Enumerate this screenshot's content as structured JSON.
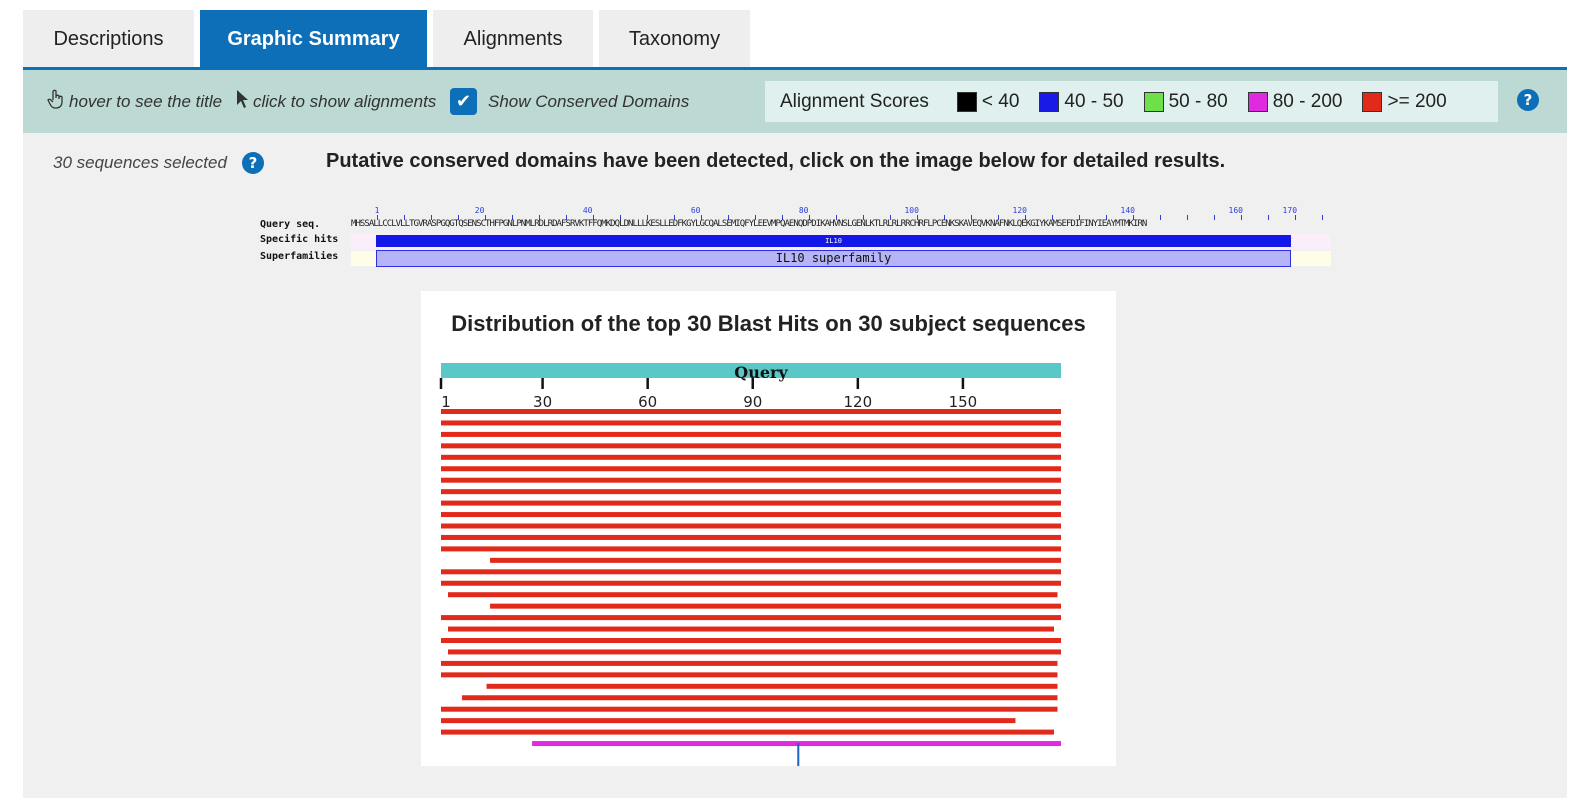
{
  "tabs": [
    {
      "label": "Descriptions",
      "active": false
    },
    {
      "label": "Graphic Summary",
      "active": true
    },
    {
      "label": "Alignments",
      "active": false
    },
    {
      "label": "Taxonomy",
      "active": false
    }
  ],
  "toolbar": {
    "hover_label": "hover to see the title",
    "click_label": "click to show alignments",
    "conserved_label": "Show Conserved Domains",
    "conserved_checked": true,
    "scores_title": "Alignment Scores",
    "legend": [
      {
        "label": "< 40",
        "color": "#000000"
      },
      {
        "label": "40 - 50",
        "color": "#1a1ae6"
      },
      {
        "label": "50 - 80",
        "color": "#6ee04a"
      },
      {
        "label": "80 - 200",
        "color": "#e02ae0"
      },
      {
        "label": ">= 200",
        "color": "#e22a1a"
      }
    ]
  },
  "selection": {
    "text": "30 sequences selected"
  },
  "cdd": {
    "message": "Putative conserved domains have been detected, click on the image below for detailed results.",
    "labels": {
      "query": "Query seq.",
      "specific": "Specific hits",
      "superfamilies": "Superfamilies"
    },
    "ruler": [
      "1",
      "20",
      "40",
      "60",
      "80",
      "100",
      "120",
      "140",
      "160",
      "170"
    ],
    "sequence": "MHSSALLCCLVLLTGVRASPGQGTQSENSCTHFPGNLPNMLRDLRDAFSRVKTFFQMKDQLDNLLLKESLLEDFKGYLGCQALSEMIQFYLEEVMPQAENQDPDIKAHVNSLGENLKTLRLRLRRCHRFLPCENKSKAVEQVKNAFNKLQEKGIYKAMSEFDIFINYIEAYMTMKIRN",
    "specific_hit": "IL10",
    "superfamily": "IL10 superfamily"
  },
  "distribution": {
    "title": "Distribution of the top 30 Blast Hits on 30 subject sequences",
    "query_label": "Query",
    "query_length": 178,
    "ticks": [
      1,
      30,
      60,
      90,
      120,
      150
    ],
    "hits": [
      {
        "start": 1,
        "end": 178,
        "score_class": ">= 200"
      },
      {
        "start": 1,
        "end": 178,
        "score_class": ">= 200"
      },
      {
        "start": 1,
        "end": 178,
        "score_class": ">= 200"
      },
      {
        "start": 1,
        "end": 178,
        "score_class": ">= 200"
      },
      {
        "start": 1,
        "end": 178,
        "score_class": ">= 200"
      },
      {
        "start": 1,
        "end": 178,
        "score_class": ">= 200"
      },
      {
        "start": 1,
        "end": 178,
        "score_class": ">= 200"
      },
      {
        "start": 1,
        "end": 178,
        "score_class": ">= 200"
      },
      {
        "start": 1,
        "end": 178,
        "score_class": ">= 200"
      },
      {
        "start": 1,
        "end": 178,
        "score_class": ">= 200"
      },
      {
        "start": 1,
        "end": 178,
        "score_class": ">= 200"
      },
      {
        "start": 1,
        "end": 178,
        "score_class": ">= 200"
      },
      {
        "start": 1,
        "end": 178,
        "score_class": ">= 200"
      },
      {
        "start": 15,
        "end": 178,
        "score_class": ">= 200"
      },
      {
        "start": 1,
        "end": 178,
        "score_class": ">= 200"
      },
      {
        "start": 1,
        "end": 178,
        "score_class": ">= 200"
      },
      {
        "start": 3,
        "end": 177,
        "score_class": ">= 200"
      },
      {
        "start": 15,
        "end": 178,
        "score_class": ">= 200"
      },
      {
        "start": 1,
        "end": 178,
        "score_class": ">= 200"
      },
      {
        "start": 3,
        "end": 176,
        "score_class": ">= 200"
      },
      {
        "start": 1,
        "end": 178,
        "score_class": ">= 200"
      },
      {
        "start": 3,
        "end": 178,
        "score_class": ">= 200"
      },
      {
        "start": 1,
        "end": 177,
        "score_class": ">= 200"
      },
      {
        "start": 1,
        "end": 177,
        "score_class": ">= 200"
      },
      {
        "start": 14,
        "end": 177,
        "score_class": ">= 200"
      },
      {
        "start": 7,
        "end": 177,
        "score_class": ">= 200"
      },
      {
        "start": 1,
        "end": 177,
        "score_class": ">= 200"
      },
      {
        "start": 1,
        "end": 165,
        "score_class": ">= 200"
      },
      {
        "start": 1,
        "end": 176,
        "score_class": ">= 200"
      },
      {
        "start": 27,
        "end": 178,
        "score_class": "80 - 200"
      }
    ],
    "marker_position": 103
  }
}
